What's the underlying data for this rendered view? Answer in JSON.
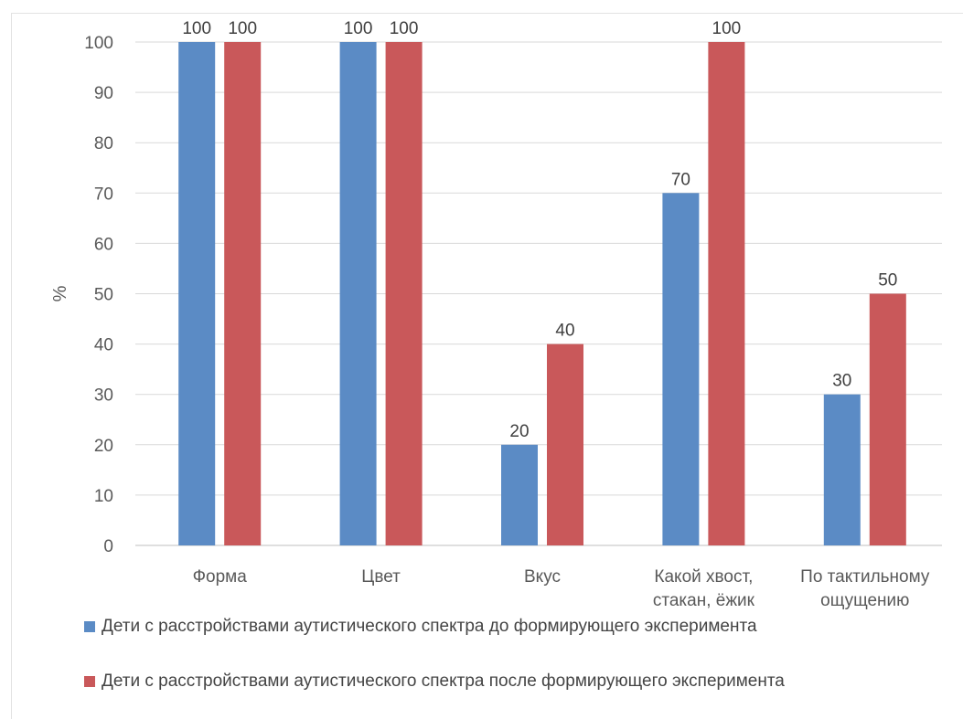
{
  "chart_data": {
    "type": "bar",
    "title": "",
    "xlabel": "",
    "ylabel": "%",
    "ylim": [
      0,
      100
    ],
    "yticks": [
      0,
      10,
      20,
      30,
      40,
      50,
      60,
      70,
      80,
      90,
      100
    ],
    "grid": true,
    "legend_position": "bottom-left",
    "categories": [
      [
        "Форма"
      ],
      [
        "Цвет"
      ],
      [
        "Вкус"
      ],
      [
        "Какой хвост,",
        "стакан, ёжик"
      ],
      [
        "По тактильному",
        "ощущению"
      ]
    ],
    "series": [
      {
        "name": "Дети с расстройствами аутистического спектра до формирующего эксперимента",
        "color": "#5b8bc5",
        "values": [
          100,
          100,
          20,
          70,
          30
        ]
      },
      {
        "name": "Дети с расстройствами аутистического спектра после формирующего эксперимента",
        "color": "#c9585a",
        "values": [
          100,
          100,
          40,
          100,
          50
        ]
      }
    ]
  }
}
